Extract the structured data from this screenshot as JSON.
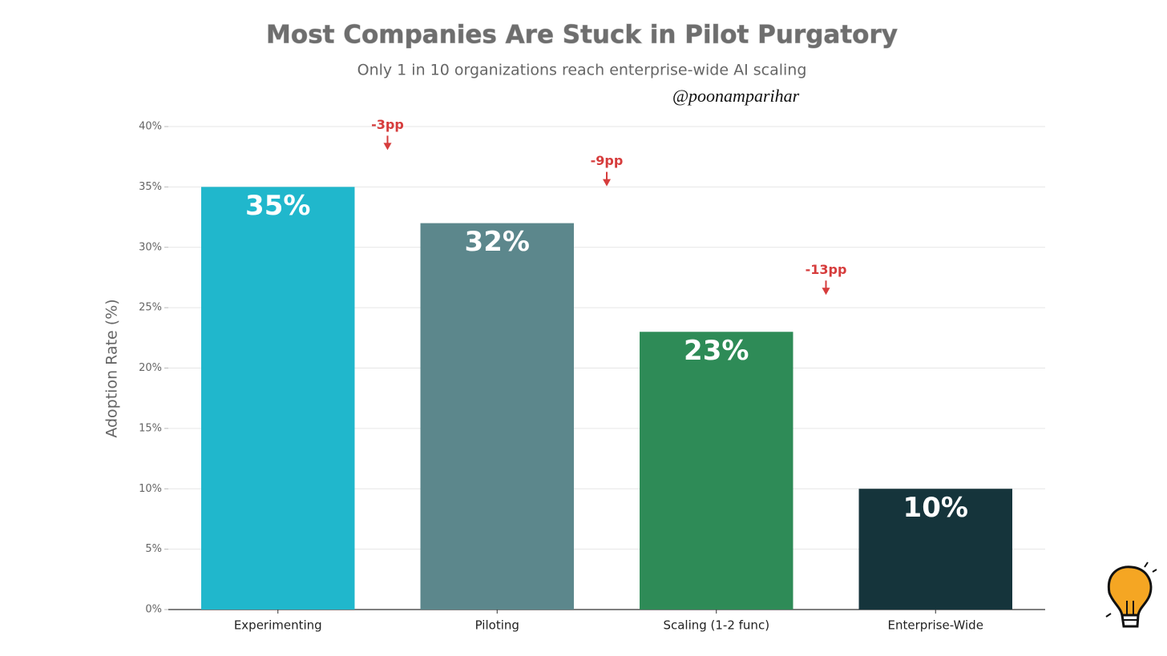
{
  "chart_data": {
    "type": "bar",
    "title": "Most Companies Are Stuck in Pilot Purgatory",
    "subtitle": "Only 1 in 10 organizations reach enterprise-wide AI scaling",
    "watermark": "@poonamparihar",
    "y_label": "Adoption Rate (%)",
    "categories": [
      "Experimenting",
      "Piloting",
      "Scaling (1-2 func)",
      "Enterprise-Wide"
    ],
    "values": [
      35,
      32,
      23,
      10
    ],
    "value_labels": [
      "35%",
      "32%",
      "23%",
      "10%"
    ],
    "colors": [
      "#20b7cc",
      "#5c878c",
      "#2e8b57",
      "#15343b"
    ],
    "annotations": [
      "-3pp",
      "-9pp",
      "-13pp"
    ],
    "annotation_color": "#d63c3c",
    "ylim": [
      0,
      40
    ],
    "yticks": [
      {
        "value": 0,
        "label": "0%"
      },
      {
        "value": 5,
        "label": "5%"
      },
      {
        "value": 10,
        "label": "10%"
      },
      {
        "value": 15,
        "label": "15%"
      },
      {
        "value": 20,
        "label": "20%"
      },
      {
        "value": 25,
        "label": "25%"
      },
      {
        "value": 30,
        "label": "30%"
      },
      {
        "value": 35,
        "label": "35%"
      },
      {
        "value": 40,
        "label": "40%"
      }
    ],
    "grid": true
  }
}
